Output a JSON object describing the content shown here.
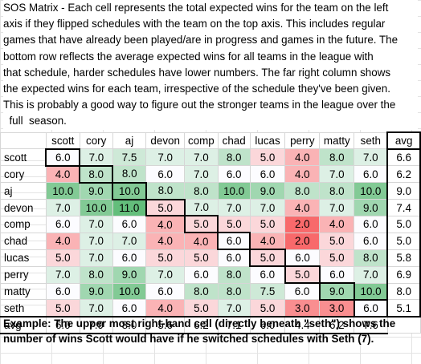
{
  "description": [
    "SOS Matrix - Each cell represents the total expected wins for the team on the left",
    "axis if they flipped schedules with the team on the top axis. This includes regular",
    "games that have already been played/are in progress and games in the future. The",
    "bottom row reflects the average expected wins for all teams in the league with",
    "that schedule, harder schedules have lower numbers. The far right column shows",
    "the expected wins for each team, irrespective of the schedule they've been given.",
    "This is probably a good way to figure out the stronger teams in the league over the",
    "  full  season."
  ],
  "table": {
    "headers": [
      "scott",
      "cory",
      "aj",
      "devon",
      "comp",
      "chad",
      "lucas",
      "perry",
      "matty",
      "seth"
    ],
    "avg_header": "avg",
    "rows": [
      {
        "team": "scott",
        "values": [
          "6.0",
          "7.0",
          "7.5",
          "7.0",
          "7.0",
          "8.0",
          "5.0",
          "4.0",
          "8.0",
          "7.0"
        ],
        "avg": "6.6"
      },
      {
        "team": "cory",
        "values": [
          "4.0",
          "8.0",
          "8.0",
          "6.0",
          "7.0",
          "6.0",
          "6.0",
          "4.0",
          "7.0",
          "6.0"
        ],
        "avg": "6.2"
      },
      {
        "team": "aj",
        "values": [
          "10.0",
          "9.0",
          "10.0",
          "8.0",
          "8.0",
          "10.0",
          "9.0",
          "8.0",
          "8.0",
          "10.0"
        ],
        "avg": "9.0"
      },
      {
        "team": "devon",
        "values": [
          "7.0",
          "10.0",
          "11.0",
          "5.0",
          "7.0",
          "7.0",
          "7.0",
          "4.0",
          "7.0",
          "9.0"
        ],
        "avg": "7.4"
      },
      {
        "team": "comp",
        "values": [
          "6.0",
          "7.0",
          "6.0",
          "4.0",
          "5.0",
          "5.0",
          "5.0",
          "2.0",
          "4.0",
          "6.0"
        ],
        "avg": "5.0"
      },
      {
        "team": "chad",
        "values": [
          "4.0",
          "7.0",
          "7.0",
          "4.0",
          "4.0",
          "6.0",
          "4.0",
          "2.0",
          "5.0",
          "6.0"
        ],
        "avg": "5.0"
      },
      {
        "team": "lucas",
        "values": [
          "5.0",
          "7.0",
          "6.0",
          "5.0",
          "5.0",
          "6.0",
          "5.0",
          "6.0",
          "5.0",
          "8.0"
        ],
        "avg": "5.8"
      },
      {
        "team": "perry",
        "values": [
          "7.0",
          "8.0",
          "9.0",
          "7.0",
          "6.0",
          "8.0",
          "6.0",
          "5.0",
          "6.0",
          "7.0"
        ],
        "avg": "6.9"
      },
      {
        "team": "matty",
        "values": [
          "6.0",
          "9.0",
          "10.0",
          "6.0",
          "8.0",
          "8.0",
          "7.5",
          "6.0",
          "9.0",
          "10.0"
        ],
        "avg": "8.0"
      },
      {
        "team": "seth",
        "values": [
          "5.0",
          "7.0",
          "6.0",
          "4.0",
          "5.0",
          "7.0",
          "5.0",
          "3.0",
          "3.0",
          "6.0"
        ],
        "avg": "5.1"
      }
    ],
    "avg_row": {
      "label": "avg",
      "values": [
        "6.0",
        "7.9",
        "8.0",
        "5.6",
        "6.2",
        "7.1",
        "6.0",
        "4.4",
        "6.2",
        "7.6"
      ]
    }
  },
  "example": [
    "Example: The upper most right-hand cell (directly beneath \"seth\") shows the",
    "number of wins Scott would have if he switched schedules with Seth (7)."
  ],
  "colors": {
    "low": "#f8696b",
    "mid": "#fcfcff",
    "high": "#63be7b"
  }
}
